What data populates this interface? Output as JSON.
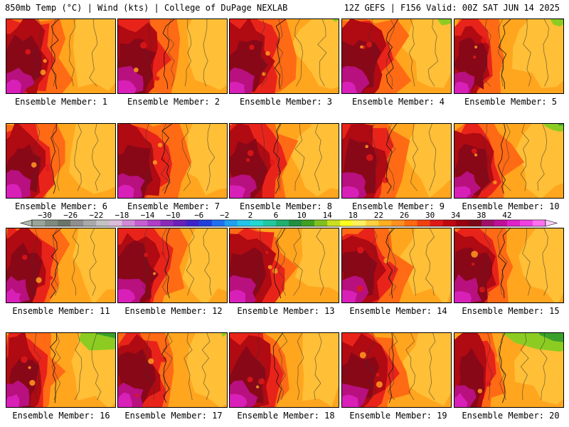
{
  "header": {
    "left_title": "850mb Temp (°C) | Wind (kts) | College of DuPage NEXLAB",
    "right_title": "12Z GEFS | F156 Valid: 00Z SAT JUN 14 2025"
  },
  "panels": [
    {
      "label": "Ensemble Member: 1",
      "hot": 0.78,
      "warm_east": 0.45,
      "green": 0.0
    },
    {
      "label": "Ensemble Member: 2",
      "hot": 0.82,
      "warm_east": 0.5,
      "green": 0.0
    },
    {
      "label": "Ensemble Member: 3",
      "hot": 0.8,
      "warm_east": 0.55,
      "green": 0.05
    },
    {
      "label": "Ensemble Member: 4",
      "hot": 0.8,
      "warm_east": 0.4,
      "green": 0.15
    },
    {
      "label": "Ensemble Member: 5",
      "hot": 0.6,
      "warm_east": 0.2,
      "green": 0.2
    },
    {
      "label": "Ensemble Member: 6",
      "hot": 0.7,
      "warm_east": 0.35,
      "green": 0.0
    },
    {
      "label": "Ensemble Member: 7",
      "hot": 0.85,
      "warm_east": 0.45,
      "green": 0.0
    },
    {
      "label": "Ensemble Member: 8",
      "hot": 0.85,
      "warm_east": 0.5,
      "green": 0.0
    },
    {
      "label": "Ensemble Member: 9",
      "hot": 0.82,
      "warm_east": 0.45,
      "green": 0.0
    },
    {
      "label": "Ensemble Member: 10",
      "hot": 0.75,
      "warm_east": 0.3,
      "green": 0.25
    },
    {
      "label": "Ensemble Member: 11",
      "hot": 0.72,
      "warm_east": 0.45,
      "green": 0.0
    },
    {
      "label": "Ensemble Member: 12",
      "hot": 0.82,
      "warm_east": 0.55,
      "green": 0.0
    },
    {
      "label": "Ensemble Member: 13",
      "hot": 0.82,
      "warm_east": 0.5,
      "green": 0.0
    },
    {
      "label": "Ensemble Member: 14",
      "hot": 0.78,
      "warm_east": 0.35,
      "green": 0.0
    },
    {
      "label": "Ensemble Member: 15",
      "hot": 0.8,
      "warm_east": 0.5,
      "green": 0.0
    },
    {
      "label": "Ensemble Member: 16",
      "hot": 0.6,
      "warm_east": 0.4,
      "green": 0.6
    },
    {
      "label": "Ensemble Member: 17",
      "hot": 0.75,
      "warm_east": 0.45,
      "green": 0.05
    },
    {
      "label": "Ensemble Member: 18",
      "hot": 0.82,
      "warm_east": 0.5,
      "green": 0.0
    },
    {
      "label": "Ensemble Member: 19",
      "hot": 0.82,
      "warm_east": 0.5,
      "green": 0.0
    },
    {
      "label": "Ensemble Member: 20",
      "hot": 0.55,
      "warm_east": 0.3,
      "green": 0.85
    }
  ],
  "colorbar": {
    "ticks": [
      "-30",
      "-26",
      "-22",
      "-18",
      "-14",
      "-10",
      "-6",
      "-2",
      "2",
      "6",
      "10",
      "14",
      "18",
      "22",
      "26",
      "30",
      "34",
      "38",
      "42"
    ],
    "colors": [
      "#9aa59a",
      "#7f8a7f",
      "#6a756a",
      "#8f8f8f",
      "#a9a9a9",
      "#c3c3c3",
      "#dcbcdc",
      "#d08ad6",
      "#c55ed1",
      "#b03ec6",
      "#8a2ab8",
      "#6a1fb8",
      "#3e22c8",
      "#1f3fdc",
      "#1f6ff0",
      "#1fa0f0",
      "#22c4e8",
      "#22d9d0",
      "#20c8a0",
      "#1fb070",
      "#209040",
      "#40a020",
      "#80c020",
      "#c8e020",
      "#ffff20",
      "#fff060",
      "#ffd040",
      "#ffb020",
      "#ff9020",
      "#ff6a10",
      "#f04010",
      "#e01818",
      "#c00810",
      "#9a0010",
      "#7a0818",
      "#a0106a",
      "#c01098",
      "#e020c8",
      "#f040e0",
      "#ff70f0"
    ]
  }
}
